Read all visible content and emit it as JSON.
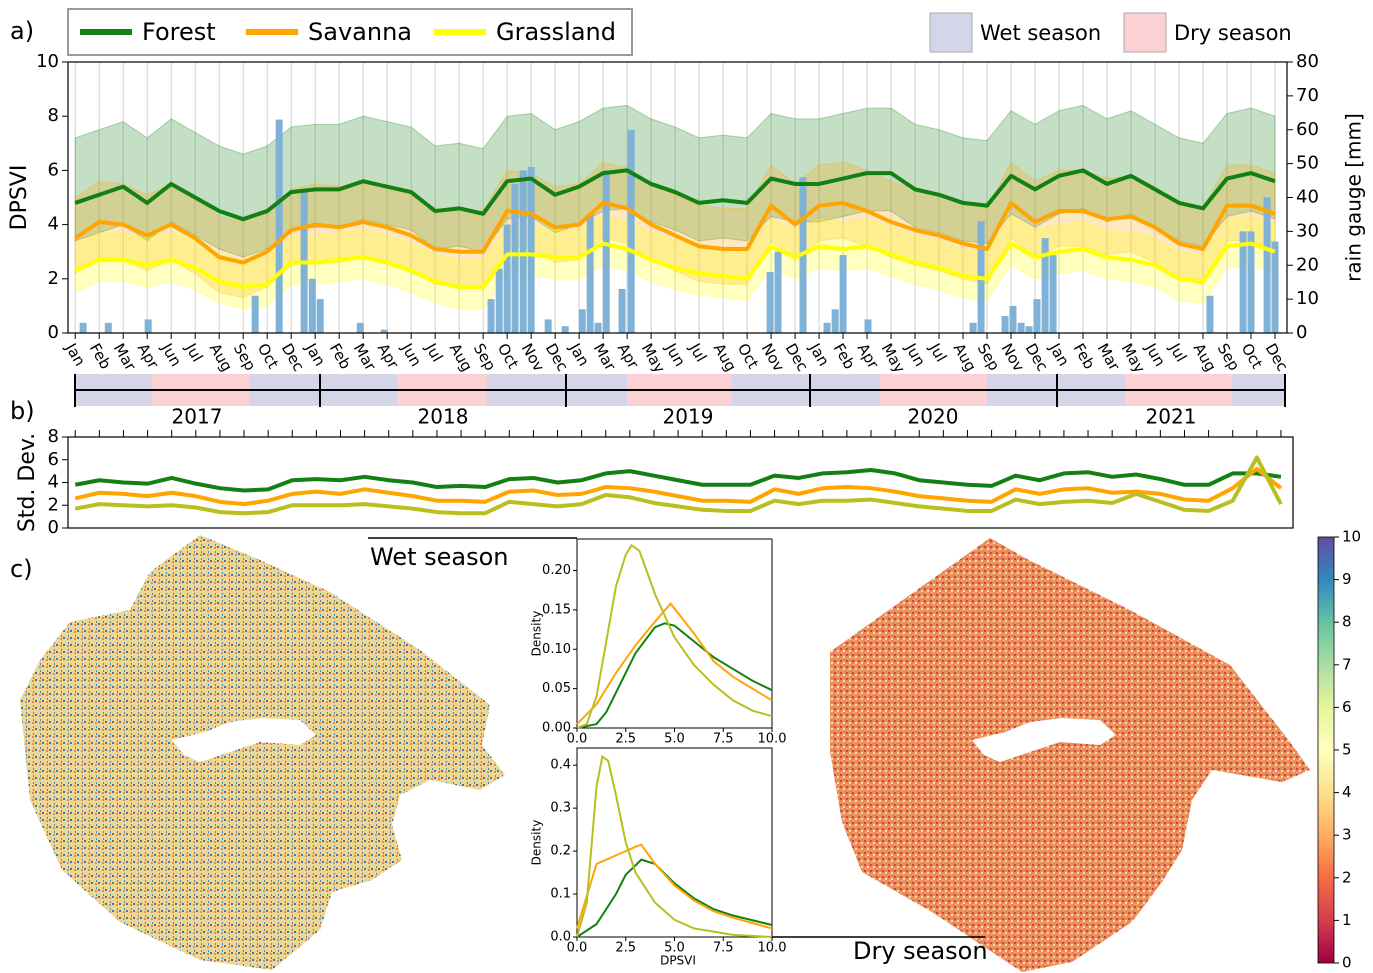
{
  "chart_data": [
    {
      "type": "line",
      "panel_label": "a)",
      "ylabel": "DPSVI",
      "y2label": "rain gauge [mm]",
      "categories": [
        "Jan",
        "Feb",
        "Mar",
        "Apr",
        "Jun",
        "Jul",
        "Aug",
        "Sep",
        "Oct",
        "Dec",
        "Jan",
        "Feb",
        "Mar",
        "Apr",
        "Jun",
        "Jul",
        "Aug",
        "Sep",
        "Oct",
        "Nov",
        "Dec",
        "Jan",
        "Mar",
        "Apr",
        "May",
        "Jun",
        "Jul",
        "Aug",
        "Oct",
        "Nov",
        "Dec",
        "Jan",
        "Feb",
        "Apr",
        "May",
        "Jun",
        "Jul",
        "Aug",
        "Sep",
        "Nov",
        "Dec",
        "Jan",
        "Feb",
        "Mar",
        "May",
        "Jun",
        "Jul",
        "Aug",
        "Sep",
        "Oct",
        "Dec"
      ],
      "xlim": [
        -0.3,
        50.5
      ],
      "ylim": [
        0,
        10
      ],
      "yticks": [
        0,
        2,
        4,
        6,
        8,
        10
      ],
      "y2lim": [
        0,
        80
      ],
      "y2ticks": [
        0,
        10,
        20,
        30,
        40,
        50,
        60,
        70,
        80
      ],
      "series": [
        {
          "name": "Forest",
          "color": "#138013",
          "values": [
            4.8,
            5.1,
            5.4,
            4.8,
            5.5,
            5.0,
            4.5,
            4.2,
            4.5,
            5.2,
            5.3,
            5.3,
            5.6,
            5.4,
            5.2,
            4.5,
            4.6,
            4.4,
            5.6,
            5.7,
            5.1,
            5.4,
            5.9,
            6.0,
            5.5,
            5.2,
            4.8,
            4.9,
            4.8,
            5.7,
            5.5,
            5.5,
            5.7,
            5.9,
            5.9,
            5.3,
            5.1,
            4.8,
            4.7,
            5.8,
            5.3,
            5.8,
            6.0,
            5.5,
            5.8,
            5.3,
            4.8,
            4.6,
            5.7,
            5.9,
            5.6
          ],
          "upper": [
            7.2,
            7.5,
            7.8,
            7.2,
            7.9,
            7.4,
            6.9,
            6.6,
            6.9,
            7.6,
            7.7,
            7.7,
            8.0,
            7.8,
            7.6,
            6.9,
            7.0,
            6.8,
            8.0,
            8.1,
            7.5,
            7.8,
            8.3,
            8.4,
            7.9,
            7.6,
            7.2,
            7.3,
            7.2,
            8.1,
            7.9,
            7.9,
            8.1,
            8.3,
            8.3,
            7.7,
            7.5,
            7.2,
            7.1,
            8.2,
            7.7,
            8.2,
            8.4,
            7.9,
            8.2,
            7.7,
            7.2,
            7.0,
            8.1,
            8.3,
            8.0
          ],
          "lower": [
            3.4,
            3.7,
            4.0,
            3.4,
            4.1,
            3.6,
            3.1,
            2.8,
            3.1,
            3.8,
            3.9,
            3.9,
            4.2,
            4.0,
            3.8,
            3.1,
            3.2,
            3.0,
            4.2,
            4.3,
            3.7,
            4.0,
            4.5,
            4.6,
            4.1,
            3.8,
            3.4,
            3.5,
            3.4,
            4.3,
            4.1,
            4.1,
            4.3,
            4.5,
            4.5,
            3.9,
            3.7,
            3.4,
            3.3,
            4.4,
            3.9,
            4.4,
            4.6,
            4.1,
            4.4,
            3.9,
            3.4,
            3.2,
            4.3,
            4.5,
            4.2
          ]
        },
        {
          "name": "Savanna",
          "color": "#ffa500",
          "values": [
            3.5,
            4.1,
            4.0,
            3.6,
            4.0,
            3.5,
            2.8,
            2.6,
            3.0,
            3.8,
            4.0,
            3.9,
            4.1,
            3.9,
            3.6,
            3.1,
            3.0,
            3.0,
            4.5,
            4.4,
            3.9,
            4.0,
            4.8,
            4.6,
            4.0,
            3.6,
            3.2,
            3.1,
            3.1,
            4.7,
            4.0,
            4.7,
            4.8,
            4.5,
            4.1,
            3.8,
            3.6,
            3.3,
            3.1,
            4.8,
            4.1,
            4.5,
            4.5,
            4.2,
            4.3,
            3.9,
            3.3,
            3.1,
            4.7,
            4.7,
            4.4
          ],
          "upper": [
            5.0,
            5.6,
            5.5,
            5.1,
            5.5,
            5.0,
            4.3,
            4.1,
            4.5,
            5.3,
            5.5,
            5.4,
            5.6,
            5.4,
            5.1,
            4.6,
            4.5,
            4.5,
            6.0,
            5.9,
            5.4,
            5.5,
            6.3,
            6.1,
            5.5,
            5.1,
            4.7,
            4.6,
            4.6,
            6.2,
            5.5,
            6.2,
            6.3,
            6.0,
            5.6,
            5.3,
            5.1,
            4.8,
            4.6,
            6.3,
            5.6,
            6.0,
            6.0,
            5.7,
            5.8,
            5.4,
            4.8,
            4.6,
            6.2,
            6.2,
            5.9
          ],
          "lower": [
            2.2,
            2.8,
            2.7,
            2.3,
            2.7,
            2.2,
            1.5,
            1.3,
            1.7,
            2.5,
            2.7,
            2.6,
            2.8,
            2.6,
            2.3,
            1.8,
            1.7,
            1.7,
            3.2,
            3.1,
            2.6,
            2.7,
            3.5,
            3.3,
            2.7,
            2.3,
            1.9,
            1.8,
            1.8,
            3.4,
            2.7,
            3.4,
            3.5,
            3.2,
            2.8,
            2.5,
            2.3,
            2.0,
            1.8,
            3.5,
            2.8,
            3.2,
            3.2,
            2.9,
            3.0,
            2.6,
            2.0,
            1.8,
            3.4,
            3.4,
            3.1
          ]
        },
        {
          "name": "Grassland",
          "color": "#ffff00",
          "values": [
            2.3,
            2.7,
            2.7,
            2.5,
            2.7,
            2.4,
            1.9,
            1.7,
            1.8,
            2.6,
            2.6,
            2.7,
            2.8,
            2.6,
            2.3,
            1.9,
            1.7,
            1.7,
            2.9,
            2.9,
            2.8,
            2.8,
            3.3,
            3.1,
            2.7,
            2.4,
            2.2,
            2.1,
            2.0,
            3.2,
            2.8,
            3.2,
            3.1,
            3.2,
            2.9,
            2.6,
            2.4,
            2.1,
            2.0,
            3.3,
            2.8,
            3.0,
            3.1,
            2.8,
            2.7,
            2.5,
            2.0,
            1.9,
            3.2,
            3.3,
            3.0
          ],
          "upper": [
            3.3,
            3.7,
            3.7,
            3.5,
            3.7,
            3.4,
            2.9,
            2.7,
            2.8,
            3.6,
            3.6,
            3.7,
            3.8,
            3.6,
            3.3,
            2.9,
            2.7,
            2.7,
            3.9,
            3.9,
            3.8,
            3.8,
            4.3,
            4.1,
            3.7,
            3.4,
            3.2,
            3.1,
            3.0,
            4.2,
            3.8,
            4.2,
            4.1,
            4.2,
            3.9,
            3.6,
            3.4,
            3.1,
            3.0,
            4.3,
            3.8,
            4.0,
            4.1,
            3.8,
            3.7,
            3.5,
            3.0,
            2.9,
            4.2,
            4.3,
            4.0
          ],
          "lower": [
            1.5,
            1.9,
            1.9,
            1.7,
            1.9,
            1.6,
            1.1,
            0.9,
            1.0,
            1.8,
            1.8,
            1.9,
            2.0,
            1.8,
            1.5,
            1.1,
            0.9,
            0.9,
            2.1,
            2.1,
            2.0,
            2.0,
            2.5,
            2.3,
            1.9,
            1.6,
            1.4,
            1.3,
            1.2,
            2.4,
            2.0,
            2.4,
            2.3,
            2.4,
            2.1,
            1.8,
            1.6,
            1.3,
            1.2,
            2.5,
            2.0,
            2.2,
            2.3,
            2.0,
            1.9,
            1.7,
            1.2,
            1.1,
            2.4,
            2.5,
            2.2
          ]
        }
      ],
      "rain": {
        "color": "#80b1d6",
        "axis": "y2",
        "x": [
          0.33,
          1.38,
          3.04,
          7.5,
          8.5,
          9.54,
          9.88,
          10.21,
          11.88,
          12.88,
          17.33,
          17.67,
          18.0,
          18.33,
          18.67,
          19.0,
          19.71,
          20.42,
          21.13,
          21.46,
          21.79,
          22.13,
          22.79,
          23.17,
          28.96,
          29.29,
          30.33,
          31.33,
          31.67,
          32.0,
          33.04,
          37.42,
          37.75,
          38.75,
          39.08,
          39.42,
          39.75,
          40.08,
          40.42,
          40.75,
          47.29,
          48.67,
          49.0,
          49.67,
          50.0
        ],
        "values": [
          3,
          3,
          4,
          11,
          63,
          42,
          16,
          10,
          3,
          1,
          10,
          19,
          32,
          44,
          48,
          49,
          4,
          2,
          7,
          35,
          3,
          48,
          13,
          60,
          18,
          24,
          46,
          3,
          7,
          23,
          4,
          3,
          33,
          5,
          8,
          3,
          2,
          10,
          28,
          23,
          11,
          30,
          30,
          40,
          27
        ]
      },
      "seasons": [
        {
          "name": "Wet season",
          "color": "#d5d5ea"
        },
        {
          "name": "Dry season",
          "color": "#fdd0d3"
        }
      ],
      "years": [
        2017,
        2018,
        2019,
        2020,
        2021
      ]
    },
    {
      "type": "line",
      "panel_label": "b)",
      "ylabel": "Std. Dev.",
      "ylim": [
        0,
        8
      ],
      "yticks": [
        0,
        2,
        4,
        6,
        8
      ],
      "series": [
        {
          "color": "#138013",
          "values": [
            3.8,
            4.2,
            4.0,
            3.9,
            4.4,
            3.9,
            3.5,
            3.3,
            3.4,
            4.2,
            4.3,
            4.2,
            4.5,
            4.2,
            4.0,
            3.6,
            3.7,
            3.6,
            4.3,
            4.4,
            4.0,
            4.2,
            4.8,
            5.0,
            4.6,
            4.2,
            3.8,
            3.8,
            3.8,
            4.6,
            4.4,
            4.8,
            4.9,
            5.1,
            4.8,
            4.2,
            4.0,
            3.8,
            3.7,
            4.6,
            4.2,
            4.8,
            4.9,
            4.5,
            4.7,
            4.3,
            3.8,
            3.8,
            4.8,
            4.8,
            4.5
          ]
        },
        {
          "color": "#ffa500",
          "values": [
            2.6,
            3.1,
            3.0,
            2.8,
            3.1,
            2.8,
            2.3,
            2.1,
            2.4,
            3.0,
            3.2,
            3.0,
            3.4,
            3.1,
            2.8,
            2.4,
            2.4,
            2.3,
            3.2,
            3.3,
            2.9,
            3.0,
            3.6,
            3.5,
            3.2,
            2.8,
            2.4,
            2.4,
            2.3,
            3.4,
            3.0,
            3.5,
            3.6,
            3.5,
            3.2,
            2.8,
            2.6,
            2.4,
            2.3,
            3.4,
            3.0,
            3.4,
            3.5,
            3.1,
            3.2,
            3.0,
            2.5,
            2.4,
            3.5,
            5.2,
            3.5
          ]
        },
        {
          "color": "#b8bf1e",
          "values": [
            1.7,
            2.1,
            2.0,
            1.9,
            2.0,
            1.8,
            1.4,
            1.3,
            1.4,
            2.0,
            2.0,
            2.0,
            2.1,
            1.9,
            1.7,
            1.4,
            1.3,
            1.3,
            2.3,
            2.1,
            1.9,
            2.1,
            2.9,
            2.7,
            2.2,
            1.9,
            1.6,
            1.5,
            1.5,
            2.4,
            2.1,
            2.4,
            2.4,
            2.5,
            2.2,
            1.9,
            1.7,
            1.5,
            1.5,
            2.5,
            2.1,
            2.3,
            2.4,
            2.2,
            3.0,
            2.3,
            1.6,
            1.5,
            2.4,
            6.2,
            2.1
          ]
        }
      ]
    },
    {
      "type": "line",
      "ylabel": "Density",
      "xlim": [
        0,
        10
      ],
      "ylim": [
        0,
        0.24
      ],
      "xticks": [
        {
          "value": 0,
          "label": "0.0"
        },
        {
          "value": 2.5,
          "label": "2.5"
        },
        {
          "value": 5,
          "label": "5.0"
        },
        {
          "value": 7.5,
          "label": "7.5"
        },
        {
          "value": 10,
          "label": "10.0"
        }
      ],
      "yticks": [
        {
          "value": 0,
          "label": "0.00"
        },
        {
          "value": 0.05,
          "label": "0.05"
        },
        {
          "value": 0.1,
          "label": "0.10"
        },
        {
          "value": 0.15,
          "label": "0.15"
        },
        {
          "value": 0.2,
          "label": "0.20"
        }
      ],
      "series": [
        {
          "color": "#138013",
          "x": [
            0,
            1,
            1.5,
            2,
            3,
            4,
            4.5,
            5,
            6,
            7,
            8,
            9,
            10
          ],
          "values": [
            0,
            0.005,
            0.02,
            0.045,
            0.095,
            0.128,
            0.133,
            0.13,
            0.11,
            0.09,
            0.075,
            0.06,
            0.048
          ]
        },
        {
          "color": "#ffa500",
          "x": [
            0,
            1,
            2,
            3,
            4,
            4.8,
            6,
            7,
            8,
            9,
            10
          ],
          "values": [
            0.005,
            0.03,
            0.07,
            0.105,
            0.135,
            0.158,
            0.12,
            0.085,
            0.065,
            0.05,
            0.035
          ]
        },
        {
          "color": "#b8bf1e",
          "x": [
            0,
            0.5,
            1,
            1.5,
            2,
            2.5,
            2.8,
            3.2,
            4,
            5,
            6,
            7,
            8,
            9,
            10
          ],
          "values": [
            0,
            0.005,
            0.04,
            0.11,
            0.18,
            0.22,
            0.232,
            0.225,
            0.17,
            0.115,
            0.08,
            0.055,
            0.035,
            0.022,
            0.015
          ]
        }
      ]
    },
    {
      "type": "line",
      "ylabel": "Density",
      "xlabel": "DPSVI",
      "xlim": [
        0,
        10
      ],
      "ylim": [
        0,
        0.44
      ],
      "xticks": [
        {
          "value": 0,
          "label": "0.0"
        },
        {
          "value": 2.5,
          "label": "2.5"
        },
        {
          "value": 5,
          "label": "5.0"
        },
        {
          "value": 7.5,
          "label": "7.5"
        },
        {
          "value": 10,
          "label": "10.0"
        }
      ],
      "yticks": [
        {
          "value": 0,
          "label": "0.0"
        },
        0.1,
        0.2,
        0.3,
        0.4
      ],
      "series": [
        {
          "color": "#138013",
          "x": [
            0,
            1,
            2,
            2.5,
            3.3,
            4,
            5,
            6,
            7,
            8,
            10
          ],
          "values": [
            0,
            0.03,
            0.1,
            0.145,
            0.18,
            0.17,
            0.125,
            0.09,
            0.065,
            0.05,
            0.028
          ]
        },
        {
          "color": "#ffa500",
          "x": [
            0,
            1,
            2,
            3,
            3.3,
            4,
            5,
            6,
            7,
            8,
            10
          ],
          "values": [
            0.02,
            0.17,
            0.19,
            0.21,
            0.215,
            0.17,
            0.12,
            0.085,
            0.06,
            0.045,
            0.02
          ]
        },
        {
          "color": "#b8bf1e",
          "x": [
            0,
            0.5,
            1,
            1.3,
            1.6,
            2,
            2.5,
            3,
            4,
            5,
            6,
            8,
            10
          ],
          "values": [
            0,
            0.08,
            0.35,
            0.42,
            0.41,
            0.33,
            0.22,
            0.15,
            0.08,
            0.04,
            0.02,
            0.005,
            0
          ]
        }
      ]
    }
  ],
  "maps": {
    "panel_label": "c)",
    "wet_label": "Wet season",
    "dry_label": "Dry season",
    "colorbar": {
      "ylim": [
        0,
        10
      ],
      "yticks": [
        0,
        1,
        2,
        3,
        4,
        5,
        6,
        7,
        8,
        9,
        10
      ]
    }
  }
}
